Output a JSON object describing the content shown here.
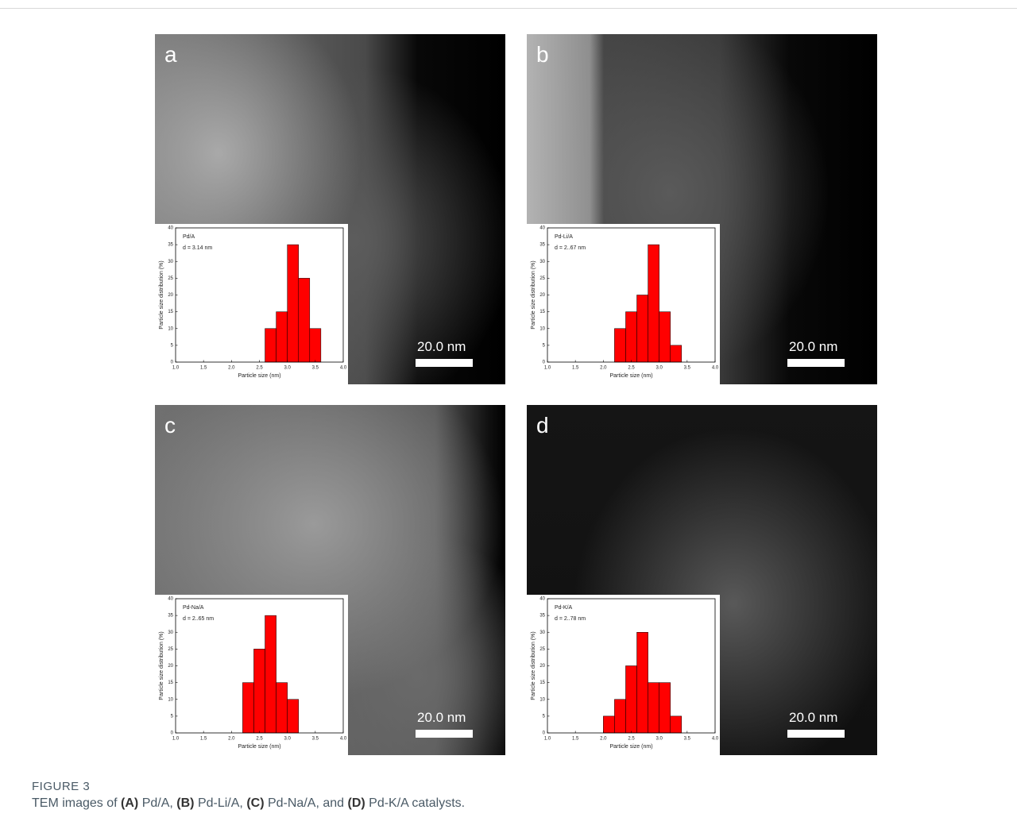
{
  "panels": [
    {
      "letter": "a",
      "scale_bar": "20.0 nm"
    },
    {
      "letter": "b",
      "scale_bar": "20.0 nm"
    },
    {
      "letter": "c",
      "scale_bar": "20.0 nm"
    },
    {
      "letter": "d",
      "scale_bar": "20.0 nm"
    }
  ],
  "chart_data": [
    {
      "type": "histogram",
      "annotations": [
        "Pd/A",
        "d = 3.14 nm"
      ],
      "x_label": "Particle size (nm)",
      "y_label": "Particle size distribution (%)",
      "color": "#ff0000",
      "bins": [
        2.6,
        2.8,
        3.0,
        3.2,
        3.4,
        3.6
      ],
      "values": [
        10,
        15,
        35,
        25,
        10
      ],
      "xlim": [
        1.0,
        4.0
      ],
      "xticks": [
        {
          "value": 1,
          "label": "1.0"
        },
        1.5,
        {
          "value": 2,
          "label": "2.0"
        },
        2.5,
        {
          "value": 3,
          "label": "3.0"
        },
        3.5,
        {
          "value": 4,
          "label": "4.0"
        }
      ],
      "ylim": [
        0,
        40
      ],
      "yticks": [
        0,
        5,
        10,
        15,
        20,
        25,
        30,
        35,
        40
      ]
    },
    {
      "type": "histogram",
      "annotations": [
        "Pd-Li/A",
        "d = 2..67 nm"
      ],
      "x_label": "Particle size (nm)",
      "y_label": "Particle size distribution (%)",
      "color": "#ff0000",
      "bins": [
        2.2,
        2.4,
        2.6,
        2.8,
        3.0,
        3.2,
        3.4
      ],
      "values": [
        10,
        15,
        20,
        35,
        15,
        5
      ],
      "xlim": [
        1.0,
        4.0
      ],
      "xticks": [
        {
          "value": 1,
          "label": "1.0"
        },
        1.5,
        {
          "value": 2,
          "label": "2.0"
        },
        2.5,
        {
          "value": 3,
          "label": "3.0"
        },
        3.5,
        {
          "value": 4,
          "label": "4.0"
        }
      ],
      "ylim": [
        0,
        40
      ],
      "yticks": [
        0,
        5,
        10,
        15,
        20,
        25,
        30,
        35,
        40
      ]
    },
    {
      "type": "histogram",
      "annotations": [
        "Pd-Na/A",
        "d = 2..65 nm"
      ],
      "x_label": "Particle size (nm)",
      "y_label": "Particle size distribution (%)",
      "color": "#ff0000",
      "bins": [
        2.2,
        2.4,
        2.6,
        2.8,
        3.0,
        3.2
      ],
      "values": [
        15,
        25,
        35,
        15,
        10
      ],
      "xlim": [
        1.0,
        4.0
      ],
      "xticks": [
        {
          "value": 1,
          "label": "1.0"
        },
        1.5,
        {
          "value": 2,
          "label": "2.0"
        },
        2.5,
        {
          "value": 3,
          "label": "3.0"
        },
        3.5,
        {
          "value": 4,
          "label": "4.0"
        }
      ],
      "ylim": [
        0,
        40
      ],
      "yticks": [
        0,
        5,
        10,
        15,
        20,
        25,
        30,
        35,
        40
      ]
    },
    {
      "type": "histogram",
      "annotations": [
        "Pd-K/A",
        "d = 2..78 nm"
      ],
      "x_label": "Particle size (nm)",
      "y_label": "Particle size distribution (%)",
      "color": "#ff0000",
      "bins": [
        2.0,
        2.2,
        2.4,
        2.6,
        2.8,
        3.0,
        3.2,
        3.4
      ],
      "values": [
        5,
        10,
        20,
        30,
        15,
        15,
        5
      ],
      "xlim": [
        1.0,
        4.0
      ],
      "xticks": [
        {
          "value": 1,
          "label": "1.0"
        },
        1.5,
        {
          "value": 2,
          "label": "2.0"
        },
        2.5,
        {
          "value": 3,
          "label": "3.0"
        },
        3.5,
        {
          "value": 4,
          "label": "4.0"
        }
      ],
      "ylim": [
        0,
        40
      ],
      "yticks": [
        0,
        5,
        10,
        15,
        20,
        25,
        30,
        35,
        40
      ]
    }
  ],
  "figure_label": "FIGURE 3",
  "caption": [
    {
      "text": "TEM images of "
    },
    {
      "text": "(A)",
      "bold": true
    },
    {
      "text": " Pd/A, "
    },
    {
      "text": "(B)",
      "bold": true
    },
    {
      "text": " Pd-Li/A, "
    },
    {
      "text": "(C)",
      "bold": true
    },
    {
      "text": " Pd-Na/A, and "
    },
    {
      "text": "(D)",
      "bold": true
    },
    {
      "text": " Pd-K/A catalysts."
    }
  ]
}
